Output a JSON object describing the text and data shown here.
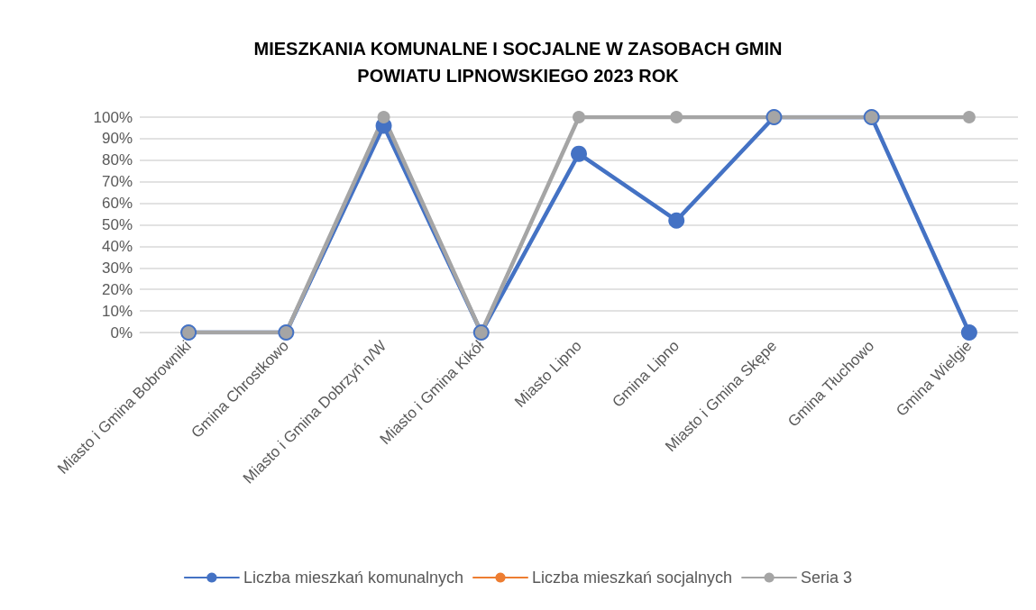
{
  "chart_data": {
    "type": "line",
    "title": "MIESZKANIA KOMUNALNE I SOCJALNE W ZASOBACH GMIN\nPOWIATU LIPNOWSKIEGO 2023 ROK",
    "categories": [
      "Miasto i Gmina Bobrowniki",
      "Gmina Chrostkowo",
      "Miasto i Gmina Dobrzyń n/W",
      "Miasto i Gmina Kikół",
      "Miasto Lipno",
      "Gmina Lipno",
      "Miasto i Gmina Skępe",
      "Gmina Tłuchowo",
      "Gmina Wielgie"
    ],
    "series": [
      {
        "name": "Liczba mieszkań komunalnych",
        "color": "#4472c4",
        "values": [
          0,
          0,
          96,
          0,
          83,
          52,
          100,
          100,
          0
        ]
      },
      {
        "name": "Liczba mieszkań socjalnych",
        "color": "#ed7d31",
        "values": [
          null,
          null,
          null,
          null,
          null,
          null,
          null,
          null,
          null
        ]
      },
      {
        "name": "Seria 3",
        "color": "#a5a5a5",
        "values": [
          0,
          0,
          100,
          0,
          100,
          100,
          100,
          100,
          100
        ]
      }
    ],
    "ylim": [
      0,
      100
    ],
    "yticks": [
      {
        "value": 0,
        "label": "0%"
      },
      {
        "value": 10,
        "label": "10%"
      },
      {
        "value": 20,
        "label": "20%"
      },
      {
        "value": 30,
        "label": "30%"
      },
      {
        "value": 40,
        "label": "40%"
      },
      {
        "value": 50,
        "label": "50%"
      },
      {
        "value": 60,
        "label": "60%"
      },
      {
        "value": 70,
        "label": "70%"
      },
      {
        "value": 80,
        "label": "80%"
      },
      {
        "value": 90,
        "label": "90%"
      },
      {
        "value": 100,
        "label": "100%"
      }
    ],
    "grid": "y",
    "legend": "bottom",
    "marker": "circle",
    "line_style": "solid"
  }
}
